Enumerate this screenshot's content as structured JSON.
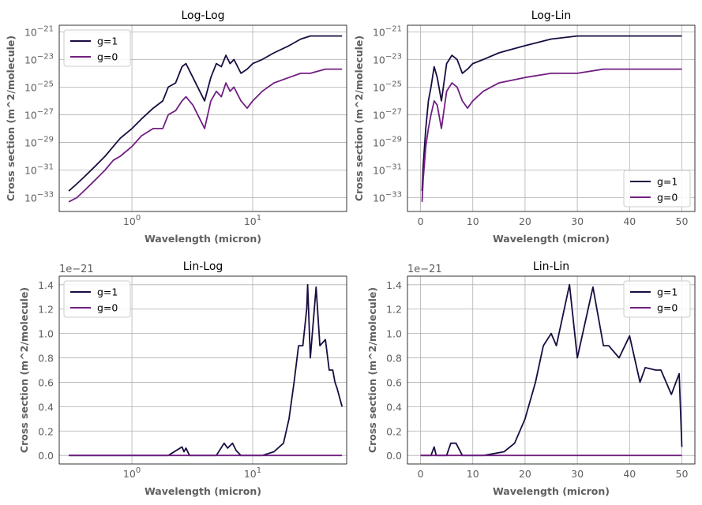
{
  "chart_data": [
    {
      "type": "line",
      "title": "Log-Log",
      "xlabel": "Wavelength (micron)",
      "ylabel": "Cross section (m^2/molecule)",
      "xscale": "log",
      "yscale": "log",
      "xlim": [
        0.25,
        60
      ],
      "ylim": [
        1e-34,
        3e-21
      ],
      "xticks": [
        {
          "v": 1,
          "label": "10^0"
        },
        {
          "v": 10,
          "label": "10^1"
        }
      ],
      "yticks": [
        {
          "v": 1e-21,
          "label": "10^-21"
        },
        {
          "v": 1e-23,
          "label": "10^-23"
        },
        {
          "v": 1e-25,
          "label": "10^-25"
        },
        {
          "v": 1e-27,
          "label": "10^-27"
        },
        {
          "v": 1e-29,
          "label": "10^-29"
        },
        {
          "v": 1e-31,
          "label": "10^-31"
        },
        {
          "v": 1e-33,
          "label": "10^-33"
        }
      ],
      "grid": true,
      "legend": "upper-left",
      "series": [
        {
          "name": "g=1",
          "color": "#1b0c41",
          "x": [
            0.3,
            0.35,
            0.4,
            0.5,
            0.6,
            0.7,
            0.8,
            1.0,
            1.2,
            1.5,
            1.8,
            2.0,
            2.3,
            2.6,
            2.8,
            3.2,
            4.0,
            4.5,
            5.0,
            5.5,
            6.0,
            6.5,
            7.0,
            7.5,
            8.0,
            9.0,
            10.0,
            12.0,
            15.0,
            20.0,
            25.0,
            30.0,
            40.0,
            50.0,
            55.0
          ],
          "y": [
            3e-33,
            1e-32,
            3e-32,
            2e-31,
            1e-30,
            5e-30,
            2e-29,
            1e-28,
            5e-28,
            3e-27,
            1e-26,
            1e-25,
            2e-25,
            3e-24,
            5e-24,
            5e-25,
            1e-26,
            5e-25,
            5e-24,
            3e-24,
            2e-23,
            5e-24,
            1e-23,
            3e-24,
            1e-24,
            2e-24,
            5e-24,
            1e-23,
            3e-23,
            1e-22,
            3e-22,
            5e-22,
            5e-22,
            5e-22,
            5e-22
          ]
        },
        {
          "name": "g=0",
          "color": "#721f81",
          "x": [
            0.3,
            0.35,
            0.4,
            0.5,
            0.6,
            0.7,
            0.8,
            1.0,
            1.2,
            1.5,
            1.8,
            2.0,
            2.3,
            2.6,
            2.8,
            3.2,
            4.0,
            4.5,
            5.0,
            5.5,
            6.0,
            6.5,
            7.0,
            7.5,
            8.0,
            9.0,
            10.0,
            12.0,
            15.0,
            20.0,
            25.0,
            30.0,
            40.0,
            50.0,
            55.0
          ],
          "y": [
            5e-34,
            1e-33,
            3e-33,
            2e-32,
            1e-31,
            5e-31,
            1e-30,
            5e-30,
            3e-29,
            1e-28,
            1e-28,
            1e-27,
            2e-27,
            1e-26,
            2e-26,
            5e-27,
            1e-28,
            1e-26,
            5e-26,
            2e-26,
            2e-25,
            5e-26,
            1e-25,
            3e-26,
            1e-26,
            3e-27,
            1e-26,
            5e-26,
            2e-25,
            5e-25,
            1e-24,
            1e-24,
            2e-24,
            2e-24,
            2e-24
          ]
        }
      ]
    },
    {
      "type": "line",
      "title": "Log-Lin",
      "xlabel": "Wavelength (micron)",
      "ylabel": "Cross section (m^2/molecule)",
      "xscale": "linear",
      "yscale": "log",
      "xlim": [
        -2.5,
        52.5
      ],
      "ylim": [
        1e-34,
        3e-21
      ],
      "xticks": [
        {
          "v": 0,
          "label": "0"
        },
        {
          "v": 10,
          "label": "10"
        },
        {
          "v": 20,
          "label": "20"
        },
        {
          "v": 30,
          "label": "30"
        },
        {
          "v": 40,
          "label": "40"
        },
        {
          "v": 50,
          "label": "50"
        }
      ],
      "yticks": [
        {
          "v": 1e-21,
          "label": "10^-21"
        },
        {
          "v": 1e-23,
          "label": "10^-23"
        },
        {
          "v": 1e-25,
          "label": "10^-25"
        },
        {
          "v": 1e-27,
          "label": "10^-27"
        },
        {
          "v": 1e-29,
          "label": "10^-29"
        },
        {
          "v": 1e-31,
          "label": "10^-31"
        },
        {
          "v": 1e-33,
          "label": "10^-33"
        }
      ],
      "grid": true,
      "legend": "lower-right",
      "series": [
        {
          "name": "g=1",
          "color": "#1b0c41",
          "x": [
            0.3,
            0.5,
            1.0,
            1.5,
            2.0,
            2.6,
            3.2,
            4.0,
            5.0,
            6.0,
            7.0,
            8.0,
            9.0,
            10.0,
            12.0,
            15.0,
            20.0,
            25.0,
            30.0,
            35.0,
            40.0,
            45.0,
            50.0
          ],
          "y": [
            3e-33,
            2e-31,
            1e-28,
            1e-26,
            1e-25,
            3e-24,
            5e-25,
            1e-26,
            5e-24,
            2e-23,
            1e-23,
            1e-24,
            2e-24,
            5e-24,
            1e-23,
            3e-23,
            1e-22,
            3e-22,
            5e-22,
            5e-22,
            5e-22,
            5e-22,
            5e-22
          ]
        },
        {
          "name": "g=0",
          "color": "#721f81",
          "x": [
            0.3,
            0.5,
            1.0,
            1.5,
            2.0,
            2.6,
            3.2,
            4.0,
            5.0,
            6.0,
            7.0,
            8.0,
            9.0,
            10.0,
            12.0,
            15.0,
            20.0,
            25.0,
            30.0,
            35.0,
            40.0,
            45.0,
            50.0
          ],
          "y": [
            5e-34,
            2e-32,
            5e-30,
            1e-28,
            1e-27,
            1e-26,
            5e-27,
            1e-28,
            5e-26,
            2e-25,
            1e-25,
            1e-26,
            3e-27,
            1e-26,
            5e-26,
            2e-25,
            5e-25,
            1e-24,
            1e-24,
            2e-24,
            2e-24,
            2e-24,
            2e-24
          ]
        }
      ]
    },
    {
      "type": "line",
      "title": "Lin-Log",
      "xlabel": "Wavelength (micron)",
      "ylabel": "Cross section (m^2/molecule)",
      "xscale": "log",
      "yscale": "linear",
      "offset_text": "1e−21",
      "xlim": [
        0.25,
        60
      ],
      "ylim": [
        -0.07,
        1.47
      ],
      "xticks": [
        {
          "v": 1,
          "label": "10^0"
        },
        {
          "v": 10,
          "label": "10^1"
        }
      ],
      "yticks": [
        {
          "v": 0.0,
          "label": "0.0"
        },
        {
          "v": 0.2,
          "label": "0.2"
        },
        {
          "v": 0.4,
          "label": "0.4"
        },
        {
          "v": 0.6,
          "label": "0.6"
        },
        {
          "v": 0.8,
          "label": "0.8"
        },
        {
          "v": 1.0,
          "label": "1.0"
        },
        {
          "v": 1.2,
          "label": "1.2"
        },
        {
          "v": 1.4,
          "label": "1.4"
        }
      ],
      "grid": true,
      "legend": "upper-left",
      "series": [
        {
          "name": "g=1",
          "color": "#1b0c41",
          "x": [
            0.3,
            2.0,
            2.6,
            2.7,
            2.8,
            3.0,
            5.0,
            5.8,
            6.2,
            6.8,
            7.3,
            8.0,
            12.0,
            15.0,
            18.0,
            20.0,
            22.0,
            24.0,
            26.0,
            28.0,
            28.5,
            30.0,
            33.0,
            33.5,
            36.0,
            40.0,
            43.0,
            46.0,
            48.0,
            50.0,
            55.0
          ],
          "y": [
            0,
            0,
            0.07,
            0.03,
            0.06,
            0,
            0,
            0.1,
            0.06,
            0.1,
            0.04,
            0,
            0,
            0.03,
            0.1,
            0.3,
            0.6,
            0.9,
            0.9,
            1.2,
            1.4,
            0.8,
            1.3,
            1.38,
            0.9,
            0.95,
            0.7,
            0.7,
            0.6,
            0.55,
            0.4
          ]
        },
        {
          "name": "g=0",
          "color": "#721f81",
          "x": [
            0.3,
            55.0
          ],
          "y": [
            0.0,
            0.0
          ]
        }
      ]
    },
    {
      "type": "line",
      "title": "Lin-Lin",
      "xlabel": "Wavelength (micron)",
      "ylabel": "Cross section (m^2/molecule)",
      "xscale": "linear",
      "yscale": "linear",
      "offset_text": "1e−21",
      "xlim": [
        -2.5,
        52.5
      ],
      "ylim": [
        -0.07,
        1.47
      ],
      "xticks": [
        {
          "v": 0,
          "label": "0"
        },
        {
          "v": 10,
          "label": "10"
        },
        {
          "v": 20,
          "label": "20"
        },
        {
          "v": 30,
          "label": "30"
        },
        {
          "v": 40,
          "label": "40"
        },
        {
          "v": 50,
          "label": "50"
        }
      ],
      "yticks": [
        {
          "v": 0.0,
          "label": "0.0"
        },
        {
          "v": 0.2,
          "label": "0.2"
        },
        {
          "v": 0.4,
          "label": "0.4"
        },
        {
          "v": 0.6,
          "label": "0.6"
        },
        {
          "v": 0.8,
          "label": "0.8"
        },
        {
          "v": 1.0,
          "label": "1.0"
        },
        {
          "v": 1.2,
          "label": "1.2"
        },
        {
          "v": 1.4,
          "label": "1.4"
        }
      ],
      "grid": true,
      "legend": "upper-right",
      "series": [
        {
          "name": "g=1",
          "color": "#1b0c41",
          "x": [
            0.0,
            2.0,
            2.6,
            3.0,
            5.0,
            5.8,
            6.8,
            8.0,
            12.0,
            16.0,
            18.0,
            20.0,
            22.0,
            23.5,
            25.0,
            26.0,
            28.5,
            30.0,
            33.0,
            35.0,
            36.0,
            38.0,
            40.0,
            42.0,
            43.0,
            45.0,
            46.0,
            48.0,
            49.5,
            50.0
          ],
          "y": [
            0,
            0,
            0.07,
            0,
            0,
            0.1,
            0.1,
            0,
            0,
            0.03,
            0.1,
            0.3,
            0.6,
            0.9,
            1.0,
            0.9,
            1.4,
            0.8,
            1.38,
            0.9,
            0.9,
            0.8,
            0.98,
            0.6,
            0.72,
            0.7,
            0.7,
            0.5,
            0.67,
            0.07
          ]
        },
        {
          "name": "g=0",
          "color": "#721f81",
          "x": [
            0.0,
            50.0
          ],
          "y": [
            0.0,
            0.0
          ]
        }
      ]
    }
  ]
}
